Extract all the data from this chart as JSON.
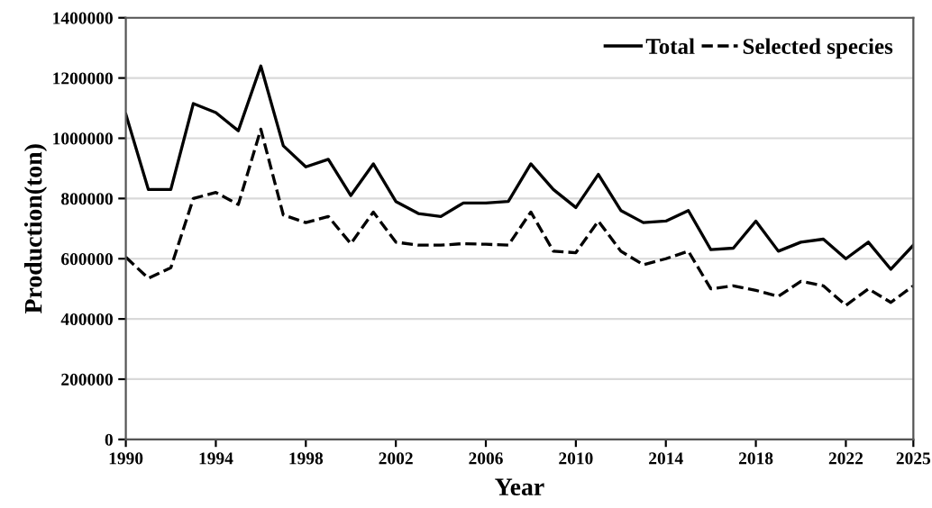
{
  "chart_data": {
    "type": "line",
    "xlabel": "Year",
    "ylabel": "Production(ton)",
    "x": [
      1990,
      1991,
      1992,
      1993,
      1994,
      1995,
      1996,
      1997,
      1998,
      1999,
      2000,
      2001,
      2002,
      2003,
      2004,
      2005,
      2006,
      2007,
      2008,
      2009,
      2010,
      2011,
      2012,
      2013,
      2014,
      2015,
      2016,
      2017,
      2018,
      2019,
      2020,
      2021,
      2022,
      2023,
      2024,
      2025
    ],
    "series": [
      {
        "name": "Total",
        "color": "#000000",
        "line_style": "solid",
        "values": [
          1080000,
          830000,
          830000,
          1115000,
          1085000,
          1025000,
          1240000,
          975000,
          905000,
          930000,
          810000,
          915000,
          790000,
          750000,
          740000,
          785000,
          785000,
          790000,
          915000,
          830000,
          770000,
          880000,
          760000,
          720000,
          725000,
          760000,
          630000,
          635000,
          725000,
          625000,
          655000,
          665000,
          600000,
          655000,
          565000,
          645000
        ]
      },
      {
        "name": "Selected species",
        "color": "#000000",
        "line_style": "dashed",
        "values": [
          605000,
          535000,
          570000,
          800000,
          820000,
          780000,
          1030000,
          745000,
          720000,
          740000,
          650000,
          755000,
          655000,
          645000,
          645000,
          650000,
          648000,
          645000,
          755000,
          625000,
          620000,
          725000,
          625000,
          580000,
          600000,
          625000,
          500000,
          510000,
          495000,
          475000,
          525000,
          510000,
          445000,
          500000,
          455000,
          510000
        ]
      }
    ],
    "xlim": [
      1990,
      2025
    ],
    "xticks": [
      1990,
      1994,
      1998,
      2002,
      2006,
      2010,
      2014,
      2018,
      2022,
      2025
    ],
    "ylim": [
      0,
      1400000
    ],
    "yticks": [
      0,
      200000,
      400000,
      600000,
      800000,
      1000000,
      1200000,
      1400000
    ],
    "grid": "y",
    "legend": "top right",
    "marker": "none"
  }
}
